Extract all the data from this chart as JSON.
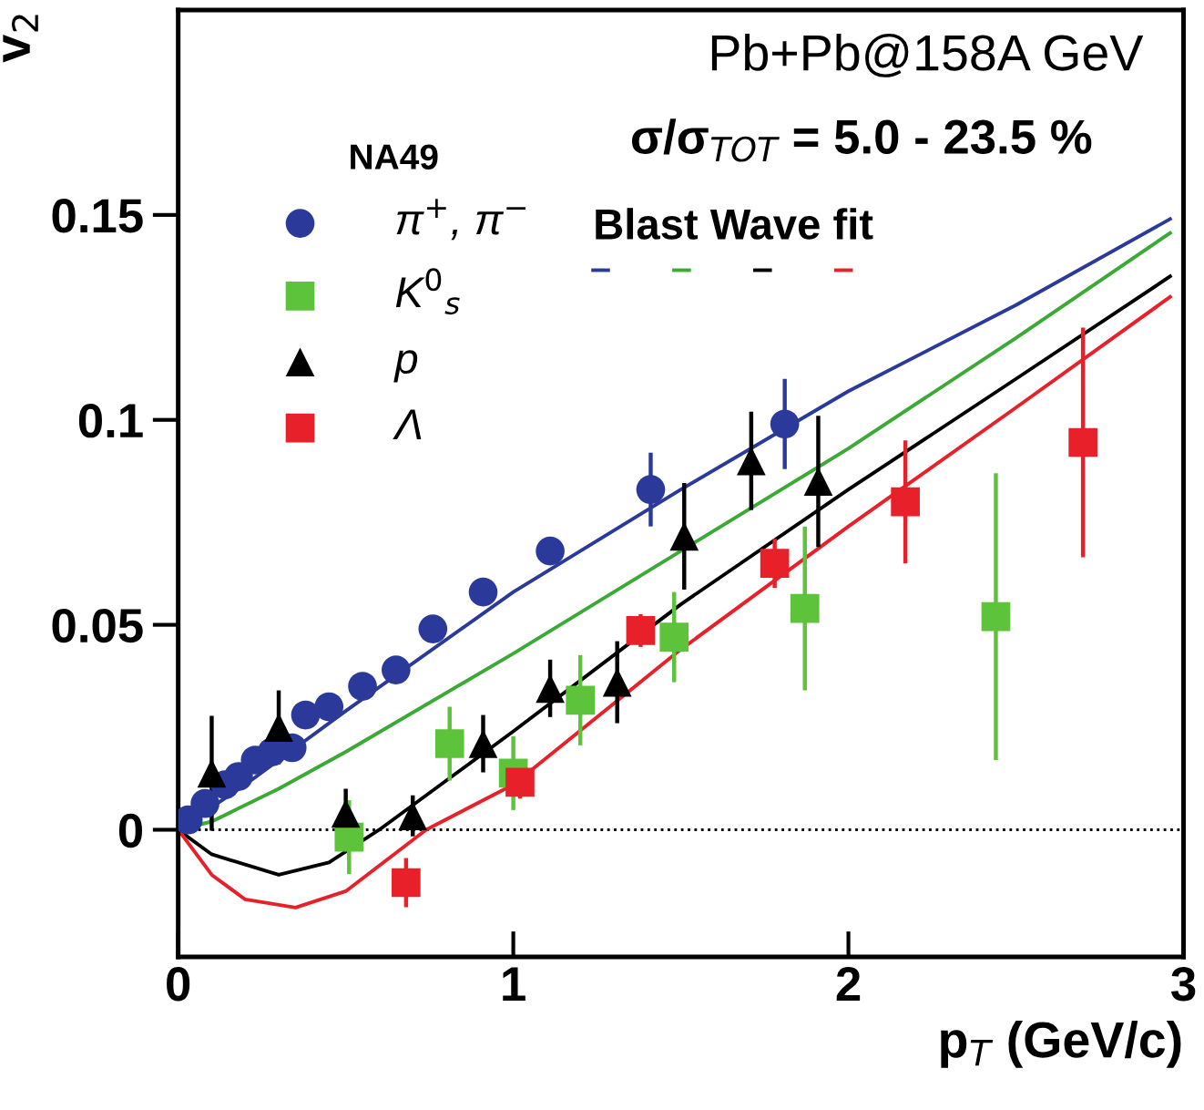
{
  "chart_data": {
    "type": "scatter",
    "xlabel": "p$_{T}$ (GeV/c)",
    "ylabel": "v$_{2}$",
    "legend_title": "NA49",
    "annotations": [
      "Pb+Pb@158A GeV",
      "σ/σ$_{TOT}$ = 5.0 - 23.5 %",
      "Blast Wave fit"
    ],
    "xlim": [
      0,
      3
    ],
    "ylim": [
      -0.031,
      0.2
    ],
    "xticks": [
      0,
      1,
      2,
      3
    ],
    "yticks": [
      0,
      0.05,
      0.1,
      0.15
    ],
    "grid": false,
    "legend": "top left",
    "ref_lines": [
      {
        "axis": "y",
        "value": 0,
        "label": null,
        "color": "#000000",
        "line_style": "dotted"
      }
    ],
    "series": [
      {
        "name": "π$^{+}$, π$^{−}$",
        "color": "#2b3a9a",
        "marker": "circle",
        "x": [
          0.03,
          0.08,
          0.14,
          0.18,
          0.23,
          0.28,
          0.34,
          0.38,
          0.45,
          0.55,
          0.65,
          0.76,
          0.91,
          1.11,
          1.41,
          1.81
        ],
        "values": [
          0.0024,
          0.0064,
          0.011,
          0.013,
          0.017,
          0.019,
          0.02,
          0.028,
          0.03,
          0.035,
          0.039,
          0.049,
          0.058,
          0.068,
          0.083,
          0.099
        ],
        "errors": [
          null,
          null,
          null,
          null,
          null,
          null,
          null,
          null,
          null,
          null,
          null,
          null,
          null,
          null,
          0.009,
          0.011
        ]
      },
      {
        "name": "K$^{0}$$_{s}$",
        "color": "#5cc33a",
        "marker": "square",
        "x": [
          0.51,
          0.81,
          1.0,
          1.2,
          1.48,
          1.87,
          2.44
        ],
        "values": [
          -0.0018,
          0.021,
          0.0138,
          0.0316,
          0.047,
          0.054,
          0.052
        ],
        "errors": [
          0.009,
          0.009,
          0.009,
          0.011,
          0.011,
          0.02,
          0.035
        ]
      },
      {
        "name": "p",
        "color": "#000000",
        "marker": "triangle",
        "x": [
          0.1,
          0.3,
          0.5,
          0.7,
          0.91,
          1.11,
          1.31,
          1.51,
          1.71,
          1.91
        ],
        "values": [
          0.0138,
          0.025,
          0.004,
          0.0034,
          0.021,
          0.0345,
          0.036,
          0.0716,
          0.09,
          0.085
        ],
        "errors": [
          0.014,
          0.009,
          0.006,
          0.005,
          0.007,
          0.007,
          0.01,
          0.013,
          0.012,
          0.016
        ]
      },
      {
        "name": "Λ",
        "color": "#e8202a",
        "marker": "square",
        "x": [
          0.68,
          1.02,
          1.38,
          1.78,
          2.17,
          2.7
        ],
        "values": [
          -0.0129,
          0.0116,
          0.0486,
          0.065,
          0.08,
          0.0945
        ],
        "errors": [
          0.006,
          0.004,
          0.004,
          0.006,
          0.015,
          0.028
        ]
      },
      {
        "type": "line",
        "color": "#2b3a9a",
        "x": [
          0,
          0.2,
          0.5,
          1,
          1.5,
          2,
          2.5,
          2.96
        ],
        "values": [
          0,
          0.011,
          0.029,
          0.058,
          0.083,
          0.107,
          0.128,
          0.149
        ]
      },
      {
        "type": "line",
        "color": "#3aaa35",
        "x": [
          0,
          0.1,
          0.3,
          0.5,
          1,
          1.5,
          2,
          2.5,
          2.96
        ],
        "values": [
          0,
          0.002,
          0.01,
          0.019,
          0.043,
          0.068,
          0.093,
          0.12,
          0.1456
        ]
      },
      {
        "type": "line",
        "color": "#000000",
        "x": [
          0,
          0.1,
          0.3,
          0.45,
          0.6,
          0.8,
          1,
          1.5,
          2,
          2.5,
          2.96
        ],
        "values": [
          0,
          -0.006,
          -0.011,
          -0.008,
          0,
          0.012,
          0.024,
          0.055,
          0.083,
          0.11,
          0.135
        ]
      },
      {
        "type": "line",
        "color": "#e8202a",
        "x": [
          0,
          0.1,
          0.2,
          0.35,
          0.5,
          0.74,
          1,
          1.5,
          2,
          2.5,
          2.96
        ],
        "values": [
          0,
          -0.011,
          -0.017,
          -0.019,
          -0.015,
          0,
          0.011,
          0.044,
          0.074,
          0.103,
          0.13
        ]
      }
    ]
  }
}
